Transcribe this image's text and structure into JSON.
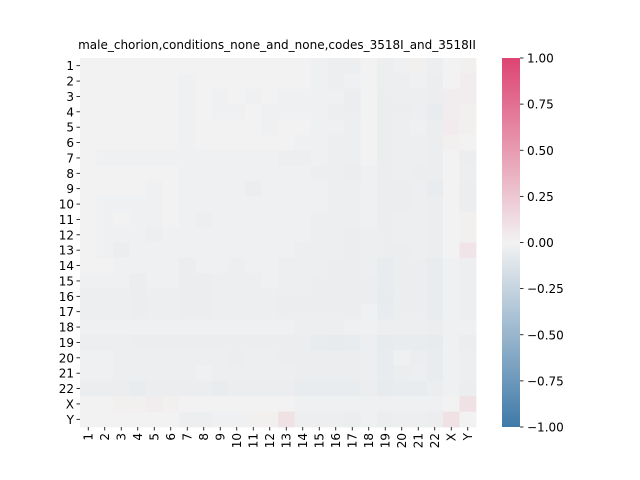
{
  "chart_data": {
    "type": "heatmap",
    "title": "male_chorion,conditions_none_and_none,codes_3518I_and_3518II",
    "xlabel": "",
    "ylabel": "",
    "row_labels": [
      "1",
      "2",
      "3",
      "4",
      "5",
      "6",
      "7",
      "8",
      "9",
      "10",
      "11",
      "12",
      "13",
      "14",
      "15",
      "16",
      "17",
      "18",
      "19",
      "20",
      "21",
      "22",
      "X",
      "Y"
    ],
    "col_labels": [
      "1",
      "2",
      "3",
      "4",
      "5",
      "6",
      "7",
      "8",
      "9",
      "10",
      "11",
      "12",
      "13",
      "14",
      "15",
      "16",
      "17",
      "18",
      "19",
      "20",
      "21",
      "22",
      "X",
      "Y"
    ],
    "values": [
      [
        0.0,
        0.0,
        0.0,
        0.0,
        0.0,
        0.0,
        0.0,
        0.0,
        0.0,
        0.0,
        0.0,
        0.0,
        0.0,
        0.0,
        -0.02,
        -0.03,
        -0.03,
        0.0,
        -0.03,
        -0.02,
        0.02,
        -0.03,
        0.0,
        0.02
      ],
      [
        0.0,
        0.0,
        0.0,
        0.0,
        0.0,
        0.0,
        -0.02,
        0.0,
        0.0,
        0.0,
        0.0,
        0.0,
        0.0,
        0.0,
        -0.02,
        -0.03,
        -0.02,
        0.0,
        -0.03,
        -0.03,
        -0.02,
        -0.04,
        0.0,
        0.03
      ],
      [
        0.0,
        0.0,
        0.0,
        0.0,
        0.0,
        0.0,
        -0.02,
        0.0,
        -0.02,
        0.0,
        -0.02,
        0.0,
        -0.02,
        -0.02,
        -0.02,
        -0.02,
        -0.04,
        0.0,
        -0.04,
        -0.03,
        -0.03,
        -0.04,
        0.03,
        0.03
      ],
      [
        0.0,
        0.0,
        0.0,
        0.0,
        0.0,
        0.0,
        -0.02,
        0.0,
        -0.02,
        -0.02,
        0.0,
        -0.02,
        -0.02,
        -0.02,
        -0.02,
        -0.03,
        -0.04,
        0.0,
        -0.04,
        -0.04,
        -0.03,
        -0.05,
        0.03,
        0.02
      ],
      [
        0.0,
        0.0,
        0.0,
        0.0,
        0.0,
        0.0,
        -0.02,
        0.0,
        0.0,
        0.0,
        0.0,
        -0.02,
        0.0,
        0.0,
        -0.02,
        -0.02,
        -0.03,
        0.0,
        -0.04,
        -0.03,
        -0.02,
        -0.04,
        0.04,
        0.02
      ],
      [
        0.0,
        0.0,
        0.0,
        0.0,
        0.0,
        0.0,
        -0.02,
        0.0,
        0.0,
        0.0,
        0.0,
        0.0,
        0.0,
        -0.02,
        -0.02,
        -0.03,
        -0.03,
        0.0,
        -0.04,
        -0.03,
        -0.03,
        -0.04,
        0.02,
        0.0
      ],
      [
        0.0,
        -0.02,
        -0.02,
        -0.02,
        -0.02,
        -0.02,
        -0.02,
        -0.02,
        -0.02,
        -0.02,
        -0.02,
        -0.02,
        -0.03,
        -0.03,
        -0.02,
        -0.03,
        -0.03,
        0.0,
        -0.04,
        -0.03,
        -0.03,
        -0.04,
        0.0,
        -0.04
      ],
      [
        0.0,
        0.0,
        0.0,
        0.0,
        0.0,
        0.0,
        -0.02,
        -0.02,
        -0.02,
        -0.02,
        -0.02,
        -0.02,
        -0.02,
        -0.02,
        -0.03,
        -0.03,
        -0.04,
        -0.02,
        -0.04,
        -0.03,
        -0.04,
        -0.04,
        0.0,
        -0.03
      ],
      [
        0.0,
        0.0,
        0.0,
        0.0,
        -0.02,
        0.0,
        -0.02,
        -0.02,
        -0.02,
        -0.02,
        -0.04,
        -0.02,
        -0.02,
        -0.02,
        -0.02,
        -0.03,
        -0.03,
        -0.02,
        -0.04,
        -0.04,
        -0.03,
        -0.05,
        0.0,
        -0.04
      ],
      [
        0.0,
        -0.02,
        -0.02,
        -0.02,
        -0.02,
        0.0,
        -0.02,
        -0.02,
        -0.02,
        -0.02,
        -0.02,
        -0.02,
        -0.02,
        -0.02,
        -0.02,
        -0.03,
        -0.03,
        -0.02,
        -0.04,
        -0.04,
        -0.03,
        -0.04,
        0.0,
        -0.04
      ],
      [
        0.0,
        -0.02,
        0.0,
        -0.02,
        -0.02,
        0.0,
        -0.02,
        -0.03,
        -0.02,
        -0.02,
        -0.02,
        -0.02,
        -0.02,
        -0.02,
        -0.03,
        -0.03,
        -0.03,
        -0.02,
        -0.04,
        -0.03,
        -0.03,
        -0.04,
        0.0,
        0.02
      ],
      [
        0.0,
        -0.02,
        -0.02,
        -0.02,
        -0.03,
        -0.02,
        -0.02,
        -0.02,
        -0.02,
        -0.02,
        -0.02,
        -0.02,
        -0.02,
        -0.02,
        -0.03,
        -0.03,
        -0.04,
        -0.03,
        -0.04,
        -0.03,
        -0.03,
        -0.04,
        0.0,
        0.02
      ],
      [
        0.0,
        -0.02,
        -0.04,
        -0.02,
        -0.02,
        -0.02,
        -0.02,
        -0.02,
        -0.02,
        -0.02,
        -0.02,
        -0.02,
        -0.02,
        -0.03,
        -0.03,
        -0.03,
        -0.04,
        -0.03,
        -0.04,
        -0.04,
        -0.03,
        -0.04,
        0.0,
        0.08
      ],
      [
        0.0,
        0.0,
        -0.02,
        -0.02,
        -0.02,
        -0.02,
        -0.04,
        -0.02,
        -0.02,
        -0.03,
        -0.02,
        -0.02,
        -0.03,
        -0.03,
        -0.03,
        -0.04,
        -0.04,
        -0.03,
        -0.05,
        -0.04,
        -0.04,
        -0.05,
        -0.02,
        -0.03
      ],
      [
        -0.02,
        -0.02,
        -0.02,
        -0.04,
        -0.02,
        -0.02,
        -0.04,
        -0.04,
        -0.03,
        -0.03,
        -0.03,
        -0.02,
        -0.03,
        -0.03,
        -0.04,
        -0.04,
        -0.04,
        -0.04,
        -0.05,
        -0.04,
        -0.04,
        -0.05,
        -0.02,
        -0.03
      ],
      [
        -0.03,
        -0.03,
        -0.03,
        -0.04,
        -0.03,
        -0.03,
        -0.04,
        -0.04,
        -0.03,
        -0.03,
        -0.03,
        -0.03,
        -0.04,
        -0.04,
        -0.04,
        -0.04,
        -0.04,
        -0.04,
        -0.06,
        -0.04,
        -0.04,
        -0.05,
        -0.02,
        -0.03
      ],
      [
        -0.03,
        -0.03,
        -0.03,
        -0.04,
        -0.03,
        -0.03,
        -0.04,
        -0.04,
        -0.03,
        -0.03,
        -0.03,
        -0.03,
        -0.04,
        -0.04,
        -0.04,
        -0.04,
        -0.04,
        -0.02,
        -0.05,
        -0.04,
        -0.04,
        -0.05,
        -0.02,
        -0.03
      ],
      [
        -0.02,
        -0.02,
        -0.02,
        -0.02,
        -0.02,
        -0.02,
        -0.02,
        -0.02,
        -0.02,
        -0.02,
        -0.02,
        -0.02,
        -0.02,
        -0.03,
        -0.03,
        -0.03,
        -0.02,
        -0.02,
        -0.03,
        -0.03,
        -0.03,
        -0.04,
        -0.02,
        -0.02
      ],
      [
        -0.03,
        -0.03,
        -0.03,
        -0.04,
        -0.04,
        -0.04,
        -0.04,
        -0.04,
        -0.04,
        -0.04,
        -0.04,
        -0.04,
        -0.04,
        -0.04,
        -0.05,
        -0.06,
        -0.05,
        -0.03,
        -0.06,
        -0.05,
        -0.05,
        -0.06,
        -0.02,
        -0.04
      ],
      [
        -0.02,
        -0.02,
        -0.03,
        -0.03,
        -0.03,
        -0.03,
        -0.03,
        -0.03,
        -0.03,
        -0.04,
        -0.03,
        -0.03,
        -0.04,
        -0.04,
        -0.04,
        -0.04,
        -0.04,
        -0.03,
        -0.05,
        -0.02,
        -0.04,
        -0.05,
        -0.02,
        -0.03
      ],
      [
        -0.02,
        -0.02,
        -0.03,
        -0.03,
        -0.03,
        -0.03,
        -0.03,
        -0.02,
        -0.03,
        -0.03,
        -0.03,
        -0.03,
        -0.03,
        -0.04,
        -0.04,
        -0.04,
        -0.04,
        -0.03,
        -0.05,
        -0.04,
        -0.03,
        -0.05,
        -0.02,
        -0.03
      ],
      [
        -0.04,
        -0.04,
        -0.04,
        -0.05,
        -0.04,
        -0.04,
        -0.04,
        -0.04,
        -0.05,
        -0.04,
        -0.04,
        -0.04,
        -0.04,
        -0.05,
        -0.05,
        -0.05,
        -0.05,
        -0.04,
        -0.06,
        -0.05,
        -0.05,
        -0.04,
        -0.02,
        -0.04
      ],
      [
        0.0,
        0.0,
        0.02,
        0.02,
        0.03,
        0.02,
        0.0,
        0.0,
        0.0,
        0.0,
        0.0,
        0.0,
        0.0,
        -0.02,
        -0.02,
        -0.02,
        -0.02,
        -0.02,
        -0.02,
        -0.02,
        -0.02,
        -0.02,
        0.0,
        0.1
      ],
      [
        0.0,
        0.0,
        0.0,
        0.0,
        0.0,
        0.0,
        -0.03,
        -0.03,
        -0.02,
        -0.02,
        0.02,
        0.02,
        0.1,
        -0.03,
        -0.03,
        -0.03,
        -0.04,
        -0.02,
        -0.04,
        -0.03,
        -0.03,
        -0.04,
        0.1,
        0.0
      ]
    ],
    "vmin": -1.0,
    "vmax": 1.0,
    "colorbar_ticks": [
      "1.00",
      "0.75",
      "0.50",
      "0.25",
      "0.00",
      "−0.25",
      "−0.50",
      "−0.75",
      "−1.00"
    ],
    "colorbar_tick_values": [
      1.0,
      0.75,
      0.5,
      0.25,
      0.0,
      -0.25,
      -0.5,
      -0.75,
      -1.0
    ],
    "colors": {
      "negative_end": "#3f7aa8",
      "center": "#f2f2f2",
      "positive_end": "#dd4472"
    },
    "grid": false,
    "legend": "colorbar-right"
  }
}
